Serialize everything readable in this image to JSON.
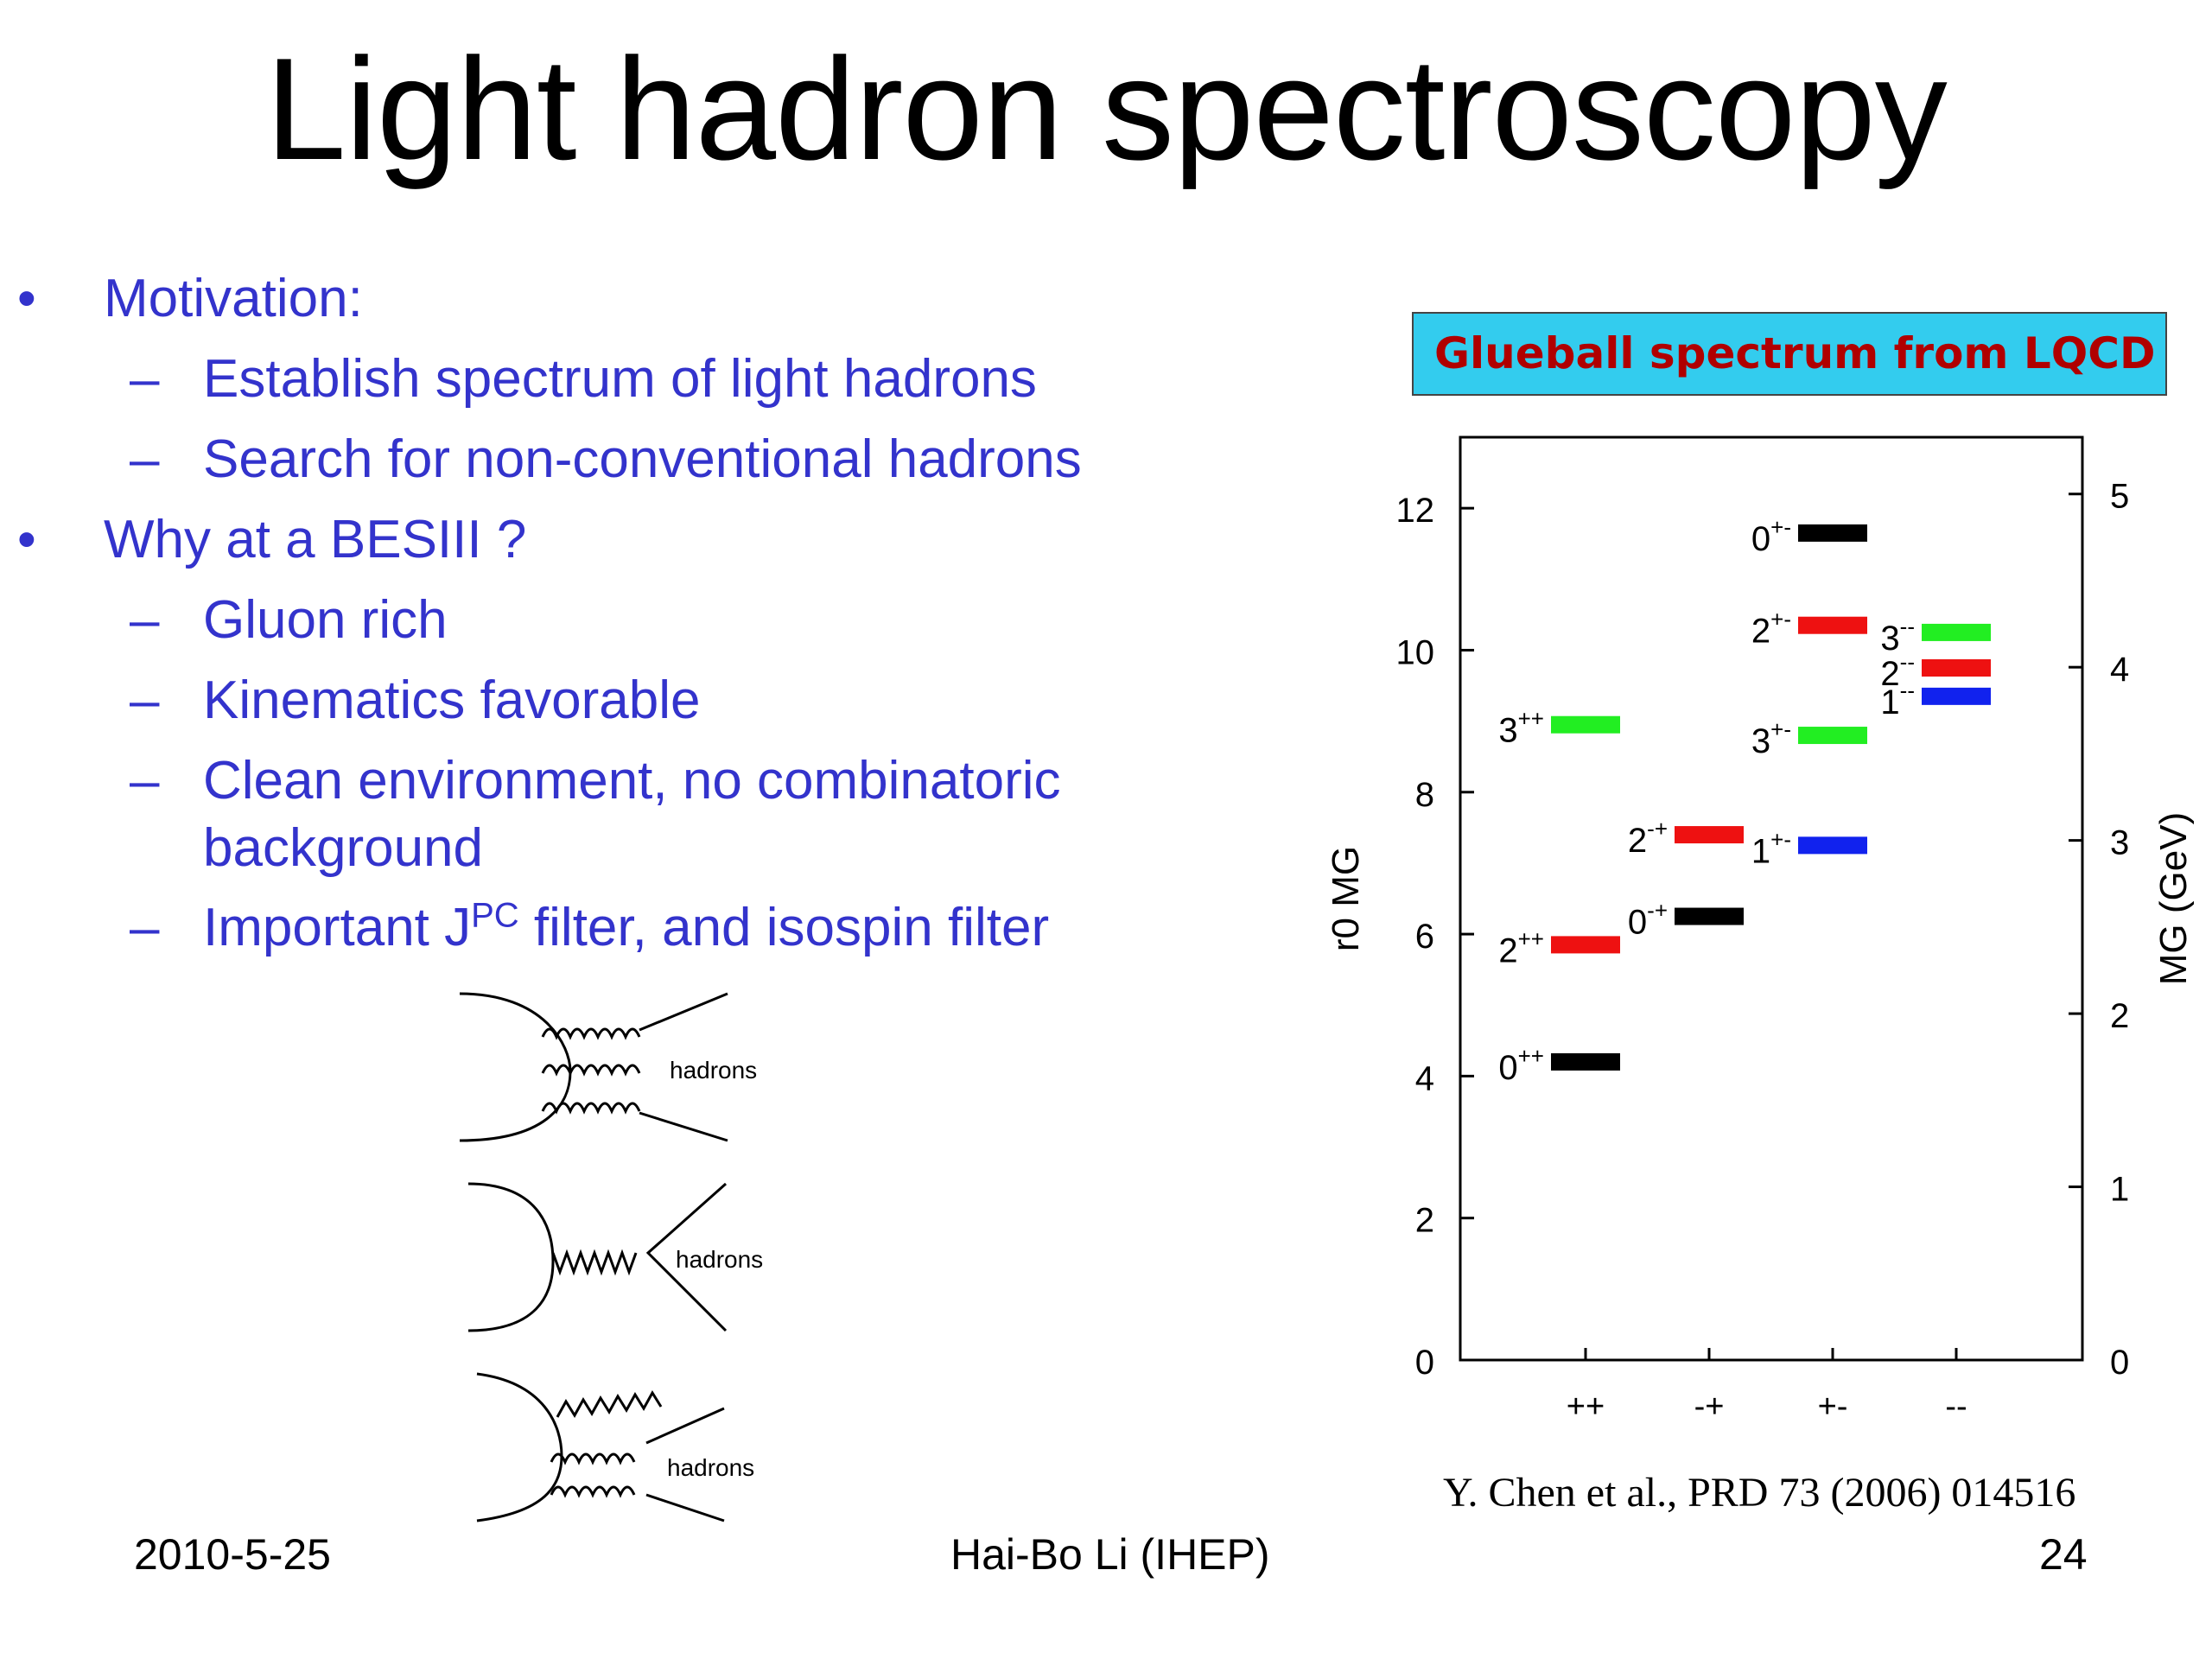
{
  "title": "Light hadron spectroscopy",
  "bullets": [
    {
      "level": 1,
      "marker": "•",
      "text": "Motivation:"
    },
    {
      "level": 2,
      "marker": "–",
      "text": "Establish spectrum of light hadrons"
    },
    {
      "level": 2,
      "marker": "–",
      "text": "Search for non-conventional hadrons"
    },
    {
      "level": 1,
      "marker": "•",
      "text": "Why at a BESIII ?"
    },
    {
      "level": 2,
      "marker": "–",
      "text": "Gluon rich"
    },
    {
      "level": 2,
      "marker": "–",
      "text": "Kinematics favorable"
    },
    {
      "level": 2,
      "marker": "–",
      "text": "Clean environment, no combinatoric"
    },
    {
      "level": 2,
      "marker": "",
      "text": "background"
    },
    {
      "level": 2,
      "marker": "–",
      "text_pre": "Important J",
      "text_sup": "PC",
      "text_post": " filter, and isospin filter"
    }
  ],
  "diagram_labels": [
    "hadrons",
    "hadrons",
    "hadrons"
  ],
  "glueball_title": "Glueball spectrum from LQCD",
  "chart_data": {
    "type": "level-diagram",
    "title": "Glueball spectrum from LQCD",
    "ylabel_left": "r0 MG",
    "ylabel_right": "MG (GeV)",
    "ylim_left": [
      0,
      13
    ],
    "yticks_left": [
      0,
      2,
      4,
      6,
      8,
      10,
      12
    ],
    "yticks_right": [
      0,
      1,
      2,
      3,
      4,
      5
    ],
    "categories": [
      "++",
      "-+",
      "+-",
      "--"
    ],
    "levels": [
      {
        "category": "++",
        "J": "0",
        "PC": "++",
        "value": 4.2,
        "color": "#000000"
      },
      {
        "category": "++",
        "J": "2",
        "PC": "++",
        "value": 5.85,
        "color": "#ee1111"
      },
      {
        "category": "++",
        "J": "3",
        "PC": "++",
        "value": 8.95,
        "color": "#22ee22"
      },
      {
        "category": "-+",
        "J": "0",
        "PC": "-+",
        "value": 6.25,
        "color": "#000000"
      },
      {
        "category": "-+",
        "J": "2",
        "PC": "-+",
        "value": 7.4,
        "color": "#ee1111"
      },
      {
        "category": "+-",
        "J": "1",
        "PC": "+-",
        "value": 7.25,
        "color": "#1122ee"
      },
      {
        "category": "+-",
        "J": "3",
        "PC": "+-",
        "value": 8.8,
        "color": "#22ee22"
      },
      {
        "category": "+-",
        "J": "2",
        "PC": "+-",
        "value": 10.35,
        "color": "#ee1111"
      },
      {
        "category": "+-",
        "J": "0",
        "PC": "+-",
        "value": 11.65,
        "color": "#000000"
      },
      {
        "category": "--",
        "J": "1",
        "PC": "--",
        "value": 9.35,
        "color": "#1122ee"
      },
      {
        "category": "--",
        "J": "2",
        "PC": "--",
        "value": 9.75,
        "color": "#ee1111"
      },
      {
        "category": "--",
        "J": "3",
        "PC": "--",
        "value": 10.25,
        "color": "#22ee22"
      }
    ]
  },
  "reference": "Y. Chen et al., PRD 73 (2006) 014516",
  "footer": {
    "date": "2010-5-25",
    "author": "Hai-Bo Li (IHEP)",
    "page": "24"
  }
}
